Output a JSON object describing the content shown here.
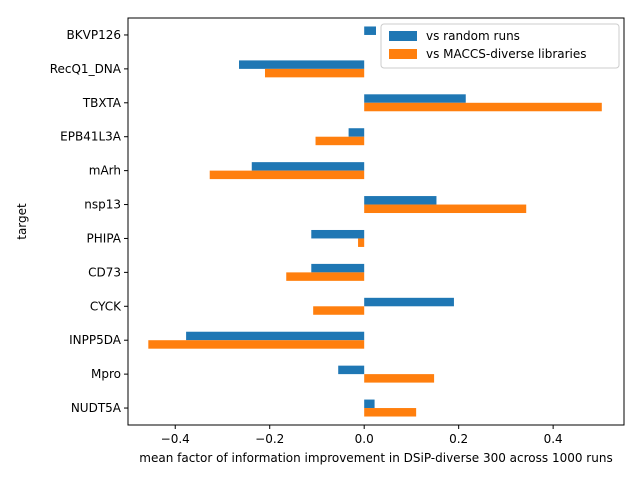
{
  "chart_data": {
    "type": "bar",
    "orientation": "horizontal",
    "title": "",
    "xlabel": "mean factor of information improvement in DSiP-diverse 300 across 1000 runs",
    "ylabel": "target",
    "categories": [
      "BKVP126",
      "RecQ1_DNA",
      "TBXTA",
      "EPB41L3A",
      "mArh",
      "nsp13",
      "PHIPA",
      "CD73",
      "CYCK",
      "INPP5DA",
      "Mpro",
      "NUDT5A"
    ],
    "series": [
      {
        "name": "vs random runs",
        "color": "#1f77b4",
        "values": [
          0.025,
          -0.265,
          0.215,
          -0.033,
          -0.238,
          0.153,
          -0.112,
          -0.112,
          0.19,
          -0.377,
          -0.055,
          0.022
        ]
      },
      {
        "name": "vs MACCS-diverse libraries",
        "color": "#ff7f0e",
        "values": [
          null,
          -0.21,
          0.503,
          -0.103,
          -0.327,
          0.343,
          -0.013,
          -0.165,
          -0.108,
          -0.457,
          0.148,
          0.11
        ]
      }
    ],
    "xlim": [
      -0.5,
      0.55
    ],
    "xticks": [
      -0.4,
      -0.2,
      0.0,
      0.2,
      0.4
    ],
    "xtick_labels": [
      "−0.4",
      "−0.2",
      "0.0",
      "0.2",
      "0.4"
    ],
    "grid": false,
    "legend_position": "top-right"
  }
}
